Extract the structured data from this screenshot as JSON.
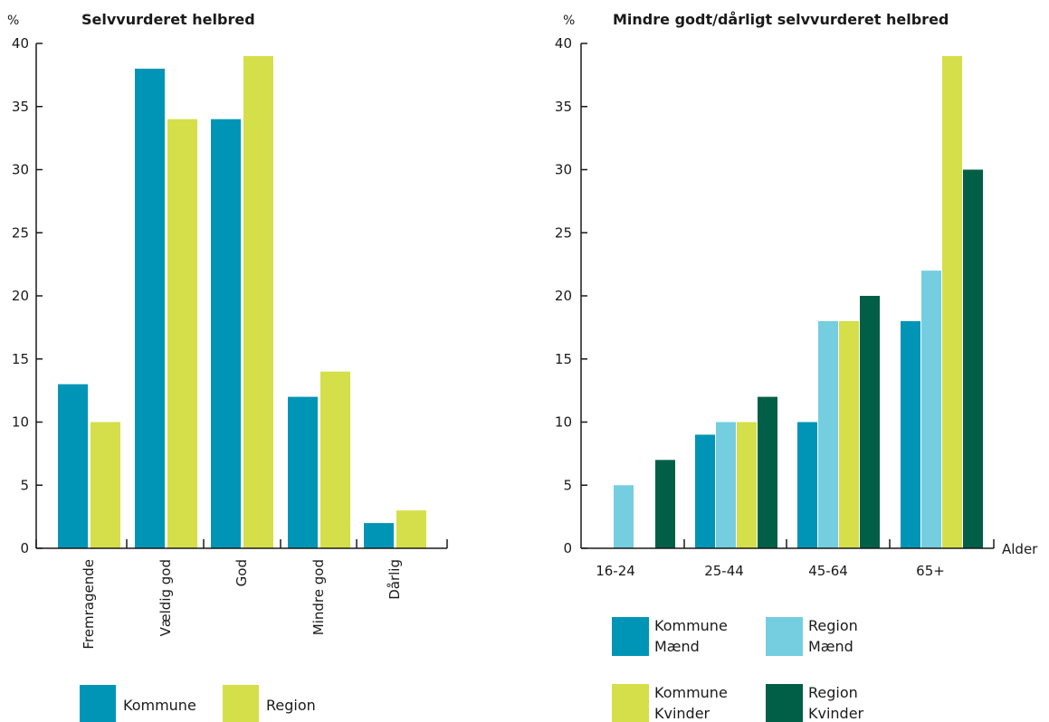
{
  "chart_data": [
    {
      "type": "bar",
      "title": "Selvvurderet helbred",
      "ylabel": "%",
      "xlabel": "",
      "ylim": [
        0,
        40
      ],
      "yticks": [
        0,
        5,
        10,
        15,
        20,
        25,
        30,
        35,
        40
      ],
      "grid": false,
      "legend_position": "bottom",
      "categories": [
        "Fremragende",
        "Vældig god",
        "God",
        "Mindre god",
        "Dårlig"
      ],
      "series": [
        {
          "name": "Kommune",
          "color": "#0095b6",
          "values": [
            13,
            38,
            34,
            12,
            2
          ]
        },
        {
          "name": "Region",
          "color": "#d4df4a",
          "values": [
            10,
            34,
            39,
            14,
            3
          ]
        }
      ]
    },
    {
      "type": "bar",
      "title": "Mindre godt/dårligt selvvurderet helbred",
      "ylabel": "%",
      "xlabel": "Alder",
      "ylim": [
        0,
        40
      ],
      "yticks": [
        0,
        5,
        10,
        15,
        20,
        25,
        30,
        35,
        40
      ],
      "grid": false,
      "legend_position": "bottom",
      "categories": [
        "16-24",
        "25-44",
        "45-64",
        "65+"
      ],
      "series": [
        {
          "name": "Kommune Mænd",
          "legend_lines": [
            "Kommune",
            "Mænd"
          ],
          "color": "#0095b6",
          "values": [
            0,
            9,
            10,
            18
          ]
        },
        {
          "name": "Region Mænd",
          "legend_lines": [
            "Region",
            "Mænd"
          ],
          "color": "#74cee0",
          "values": [
            5,
            10,
            18,
            22
          ]
        },
        {
          "name": "Kommune Kvinder",
          "legend_lines": [
            "Kommune",
            "Kvinder"
          ],
          "color": "#d4df4a",
          "values": [
            0,
            10,
            18,
            39
          ]
        },
        {
          "name": "Region Kvinder",
          "legend_lines": [
            "Region",
            "Kvinder"
          ],
          "color": "#005f46",
          "values": [
            7,
            12,
            20,
            30
          ]
        }
      ]
    }
  ]
}
